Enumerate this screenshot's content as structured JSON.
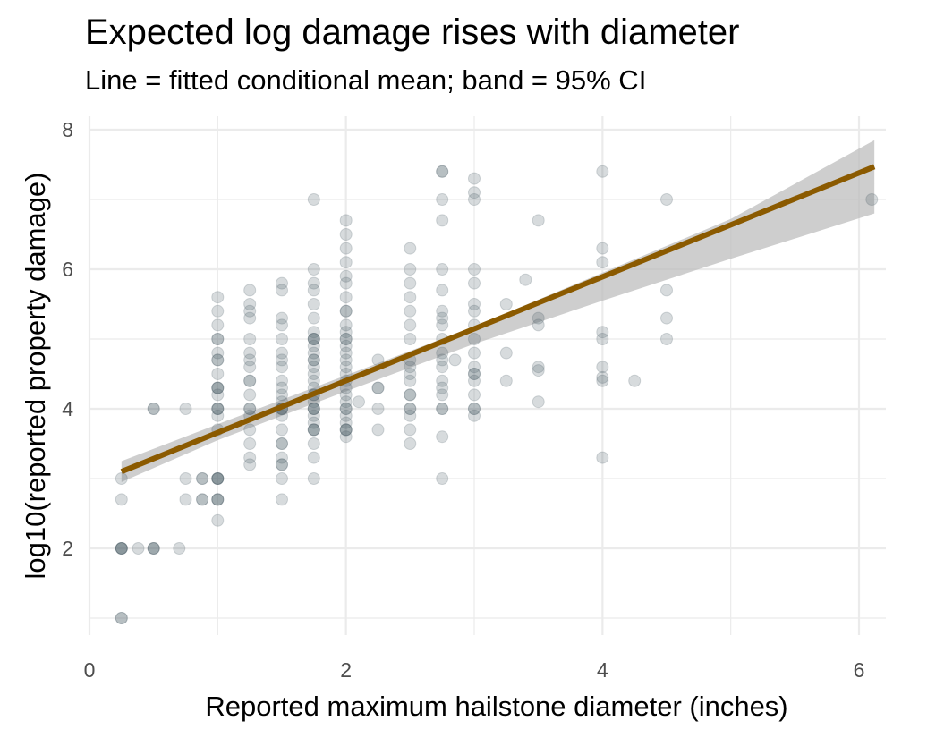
{
  "chart_data": {
    "type": "scatter",
    "title": "Expected log damage rises with diameter",
    "subtitle": "Line = fitted conditional mean; band = 95% CI",
    "xlabel": "Reported maximum hailstone diameter (inches)",
    "ylabel": "log10(reported property damage)",
    "xlim": [
      0,
      6.25
    ],
    "ylim": [
      0.75,
      8.1
    ],
    "x_ticks": [
      0,
      2,
      4,
      6
    ],
    "y_ticks": [
      2,
      4,
      6,
      8
    ],
    "x_tick_labels": [
      "0",
      "2",
      "4",
      "6"
    ],
    "y_tick_labels": [
      "2",
      "4",
      "6",
      "8"
    ],
    "grid": true,
    "legend": "none",
    "point_color": "#4a5a64",
    "line_color": "#8b5a00",
    "band_color": "#bdbdbd",
    "points": [
      [
        0.25,
        1.0
      ],
      [
        0.25,
        1.0
      ],
      [
        0.25,
        2.0
      ],
      [
        0.25,
        2.0
      ],
      [
        0.25,
        2.0
      ],
      [
        0.25,
        2.0
      ],
      [
        0.25,
        2.7
      ],
      [
        0.25,
        3.0
      ],
      [
        0.38,
        2.0
      ],
      [
        0.5,
        2.0
      ],
      [
        0.5,
        2.0
      ],
      [
        0.5,
        2.0
      ],
      [
        0.5,
        4.0
      ],
      [
        0.5,
        4.0
      ],
      [
        0.7,
        2.0
      ],
      [
        0.75,
        2.7
      ],
      [
        0.75,
        3.0
      ],
      [
        0.75,
        4.0
      ],
      [
        0.88,
        2.7
      ],
      [
        0.88,
        2.7
      ],
      [
        0.88,
        3.0
      ],
      [
        0.88,
        3.0
      ],
      [
        1.0,
        2.4
      ],
      [
        1.0,
        2.7
      ],
      [
        1.0,
        2.7
      ],
      [
        1.0,
        2.7
      ],
      [
        1.0,
        3.0
      ],
      [
        1.0,
        3.0
      ],
      [
        1.0,
        3.0
      ],
      [
        1.0,
        3.0
      ],
      [
        1.0,
        3.7
      ],
      [
        1.0,
        3.9
      ],
      [
        1.0,
        4.0
      ],
      [
        1.0,
        4.0
      ],
      [
        1.0,
        4.0
      ],
      [
        1.0,
        4.2
      ],
      [
        1.0,
        4.3
      ],
      [
        1.0,
        4.3
      ],
      [
        1.0,
        4.3
      ],
      [
        1.0,
        4.5
      ],
      [
        1.0,
        4.7
      ],
      [
        1.0,
        4.7
      ],
      [
        1.0,
        4.8
      ],
      [
        1.0,
        5.0
      ],
      [
        1.0,
        5.0
      ],
      [
        1.0,
        5.2
      ],
      [
        1.0,
        5.4
      ],
      [
        1.0,
        5.6
      ],
      [
        1.25,
        3.2
      ],
      [
        1.25,
        3.3
      ],
      [
        1.25,
        3.5
      ],
      [
        1.25,
        3.7
      ],
      [
        1.25,
        3.9
      ],
      [
        1.25,
        4.0
      ],
      [
        1.25,
        4.0
      ],
      [
        1.25,
        4.2
      ],
      [
        1.25,
        4.4
      ],
      [
        1.25,
        4.4
      ],
      [
        1.25,
        4.6
      ],
      [
        1.25,
        4.7
      ],
      [
        1.25,
        4.8
      ],
      [
        1.25,
        5.0
      ],
      [
        1.25,
        5.3
      ],
      [
        1.25,
        5.4
      ],
      [
        1.25,
        5.5
      ],
      [
        1.25,
        5.7
      ],
      [
        1.5,
        2.7
      ],
      [
        1.5,
        3.0
      ],
      [
        1.5,
        3.2
      ],
      [
        1.5,
        3.2
      ],
      [
        1.5,
        3.3
      ],
      [
        1.5,
        3.5
      ],
      [
        1.5,
        3.5
      ],
      [
        1.5,
        3.7
      ],
      [
        1.5,
        3.9
      ],
      [
        1.5,
        4.0
      ],
      [
        1.5,
        4.0
      ],
      [
        1.5,
        4.0
      ],
      [
        1.5,
        4.1
      ],
      [
        1.5,
        4.2
      ],
      [
        1.5,
        4.3
      ],
      [
        1.5,
        4.4
      ],
      [
        1.5,
        4.6
      ],
      [
        1.5,
        4.7
      ],
      [
        1.5,
        4.8
      ],
      [
        1.5,
        5.0
      ],
      [
        1.5,
        5.2
      ],
      [
        1.5,
        5.3
      ],
      [
        1.5,
        5.7
      ],
      [
        1.5,
        5.8
      ],
      [
        1.75,
        3.0
      ],
      [
        1.75,
        3.3
      ],
      [
        1.75,
        3.5
      ],
      [
        1.75,
        3.7
      ],
      [
        1.75,
        3.7
      ],
      [
        1.75,
        3.7
      ],
      [
        1.75,
        3.8
      ],
      [
        1.75,
        3.9
      ],
      [
        1.75,
        4.0
      ],
      [
        1.75,
        4.0
      ],
      [
        1.75,
        4.0
      ],
      [
        1.75,
        4.1
      ],
      [
        1.75,
        4.2
      ],
      [
        1.75,
        4.2
      ],
      [
        1.75,
        4.3
      ],
      [
        1.75,
        4.4
      ],
      [
        1.75,
        4.5
      ],
      [
        1.75,
        4.6
      ],
      [
        1.75,
        4.7
      ],
      [
        1.75,
        4.7
      ],
      [
        1.75,
        4.8
      ],
      [
        1.75,
        4.9
      ],
      [
        1.75,
        5.0
      ],
      [
        1.75,
        5.0
      ],
      [
        1.75,
        5.0
      ],
      [
        1.75,
        5.1
      ],
      [
        1.75,
        5.3
      ],
      [
        1.75,
        5.5
      ],
      [
        1.75,
        5.7
      ],
      [
        1.75,
        5.8
      ],
      [
        1.75,
        6.0
      ],
      [
        1.75,
        7.0
      ],
      [
        2.0,
        3.6
      ],
      [
        2.0,
        3.7
      ],
      [
        2.0,
        3.7
      ],
      [
        2.0,
        3.7
      ],
      [
        2.0,
        3.8
      ],
      [
        2.0,
        3.9
      ],
      [
        2.0,
        4.0
      ],
      [
        2.0,
        4.0
      ],
      [
        2.0,
        4.1
      ],
      [
        2.0,
        4.2
      ],
      [
        2.0,
        4.3
      ],
      [
        2.0,
        4.4
      ],
      [
        2.0,
        4.5
      ],
      [
        2.0,
        4.6
      ],
      [
        2.0,
        4.7
      ],
      [
        2.0,
        4.8
      ],
      [
        2.0,
        4.9
      ],
      [
        2.0,
        5.0
      ],
      [
        2.0,
        5.0
      ],
      [
        2.0,
        5.1
      ],
      [
        2.0,
        5.2
      ],
      [
        2.0,
        5.4
      ],
      [
        2.0,
        5.4
      ],
      [
        2.0,
        5.6
      ],
      [
        2.0,
        5.8
      ],
      [
        2.0,
        5.9
      ],
      [
        2.0,
        6.1
      ],
      [
        2.0,
        6.3
      ],
      [
        2.0,
        6.5
      ],
      [
        2.0,
        6.7
      ],
      [
        2.1,
        4.1
      ],
      [
        2.25,
        3.7
      ],
      [
        2.25,
        4.0
      ],
      [
        2.25,
        4.3
      ],
      [
        2.25,
        4.3
      ],
      [
        2.25,
        4.7
      ],
      [
        2.5,
        3.5
      ],
      [
        2.5,
        3.7
      ],
      [
        2.5,
        3.9
      ],
      [
        2.5,
        4.0
      ],
      [
        2.5,
        4.0
      ],
      [
        2.5,
        4.2
      ],
      [
        2.5,
        4.2
      ],
      [
        2.5,
        4.4
      ],
      [
        2.5,
        4.5
      ],
      [
        2.5,
        4.6
      ],
      [
        2.5,
        4.7
      ],
      [
        2.5,
        5.0
      ],
      [
        2.5,
        5.2
      ],
      [
        2.5,
        5.4
      ],
      [
        2.5,
        5.6
      ],
      [
        2.5,
        5.8
      ],
      [
        2.5,
        6.0
      ],
      [
        2.5,
        6.3
      ],
      [
        2.75,
        3.0
      ],
      [
        2.75,
        3.6
      ],
      [
        2.75,
        4.0
      ],
      [
        2.75,
        4.0
      ],
      [
        2.75,
        4.2
      ],
      [
        2.75,
        4.3
      ],
      [
        2.75,
        4.4
      ],
      [
        2.75,
        4.6
      ],
      [
        2.75,
        4.7
      ],
      [
        2.75,
        4.8
      ],
      [
        2.75,
        5.0
      ],
      [
        2.75,
        5.2
      ],
      [
        2.75,
        5.3
      ],
      [
        2.75,
        5.4
      ],
      [
        2.75,
        5.7
      ],
      [
        2.75,
        6.0
      ],
      [
        2.75,
        6.7
      ],
      [
        2.75,
        7.0
      ],
      [
        2.75,
        7.4
      ],
      [
        2.75,
        7.4
      ],
      [
        2.85,
        4.7
      ],
      [
        3.0,
        3.9
      ],
      [
        3.0,
        4.0
      ],
      [
        3.0,
        4.0
      ],
      [
        3.0,
        4.2
      ],
      [
        3.0,
        4.4
      ],
      [
        3.0,
        4.5
      ],
      [
        3.0,
        4.5
      ],
      [
        3.0,
        4.6
      ],
      [
        3.0,
        4.8
      ],
      [
        3.0,
        5.0
      ],
      [
        3.0,
        5.2
      ],
      [
        3.0,
        5.4
      ],
      [
        3.0,
        5.5
      ],
      [
        3.0,
        5.8
      ],
      [
        3.0,
        6.0
      ],
      [
        3.0,
        7.0
      ],
      [
        3.0,
        7.1
      ],
      [
        3.0,
        7.3
      ],
      [
        3.25,
        4.4
      ],
      [
        3.25,
        4.8
      ],
      [
        3.25,
        5.5
      ],
      [
        3.4,
        5.85
      ],
      [
        3.5,
        4.1
      ],
      [
        3.5,
        4.55
      ],
      [
        3.5,
        4.6
      ],
      [
        3.5,
        5.2
      ],
      [
        3.5,
        5.3
      ],
      [
        3.5,
        6.7
      ],
      [
        4.0,
        3.3
      ],
      [
        4.0,
        4.4
      ],
      [
        4.0,
        4.45
      ],
      [
        4.0,
        4.6
      ],
      [
        4.0,
        5.0
      ],
      [
        4.0,
        5.1
      ],
      [
        4.0,
        6.1
      ],
      [
        4.0,
        6.3
      ],
      [
        4.0,
        7.4
      ],
      [
        4.25,
        4.4
      ],
      [
        4.5,
        5.0
      ],
      [
        4.5,
        5.3
      ],
      [
        4.5,
        5.7
      ],
      [
        4.5,
        7.0
      ],
      [
        6.1,
        7.0
      ]
    ],
    "fit": {
      "x0": 0.25,
      "y0": 3.1,
      "x1": 6.12,
      "y1": 7.47
    },
    "ci": [
      [
        0.25,
        2.95,
        3.25
      ],
      [
        1.0,
        3.55,
        3.78
      ],
      [
        2.0,
        4.25,
        4.48
      ],
      [
        3.0,
        4.93,
        5.18
      ],
      [
        4.0,
        5.55,
        5.95
      ],
      [
        5.0,
        6.15,
        6.72
      ],
      [
        6.12,
        6.8,
        7.85
      ]
    ]
  }
}
